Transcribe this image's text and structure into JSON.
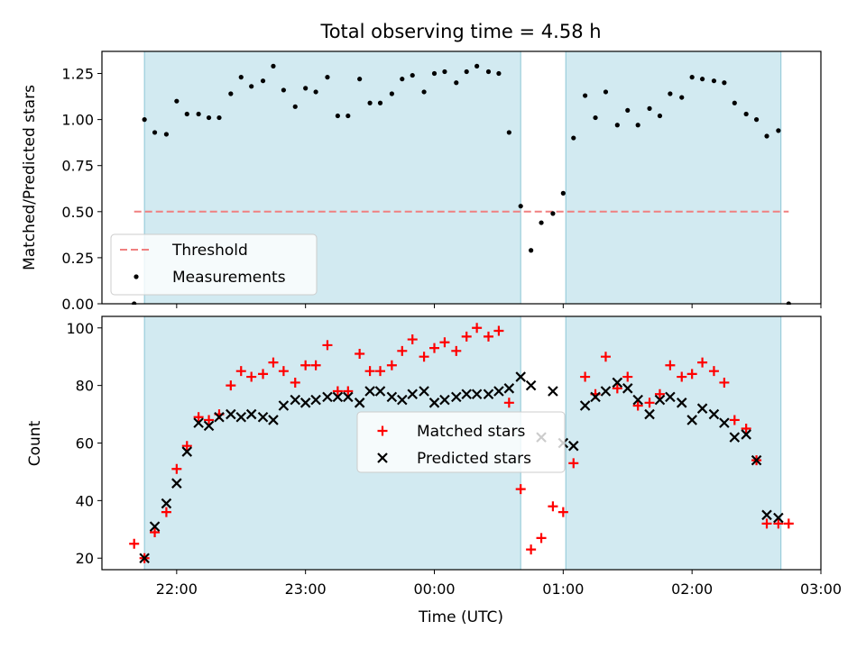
{
  "chart_data": {
    "type": "scatter",
    "title": "Total observing time = 4.58 h",
    "xlabel": "Time (UTC)",
    "x_unit": "UTC hour of night (hours after 24:00 continue past midnight)",
    "xlim": [
      21.42,
      27.0
    ],
    "xticks": [
      {
        "value": 22,
        "label": "22:00"
      },
      {
        "value": 23,
        "label": "23:00"
      },
      {
        "value": 24,
        "label": "00:00"
      },
      {
        "value": 25,
        "label": "01:00"
      },
      {
        "value": 26,
        "label": "02:00"
      },
      {
        "value": 27,
        "label": "03:00"
      }
    ],
    "observing_windows": [
      [
        21.75,
        24.67
      ],
      [
        25.02,
        26.69
      ]
    ],
    "window_color": "#add8e6",
    "panels": [
      {
        "ylabel": "Matched/Predicted stars",
        "ylim": [
          0,
          1.37
        ],
        "yticks": [
          0,
          0.25,
          0.5,
          0.75,
          1.0,
          1.25
        ],
        "ytick_labels": [
          "0.00",
          "0.25",
          "0.50",
          "0.75",
          "1.00",
          "1.25"
        ],
        "threshold": {
          "name": "Threshold",
          "y": 0.5,
          "x_range": [
            21.67,
            26.75
          ],
          "color": "#f08080"
        },
        "legend": {
          "position": "lower left",
          "entries": [
            "Threshold",
            "Measurements"
          ]
        },
        "series": [
          {
            "name": "Measurements",
            "marker": "dot",
            "color": "#000000",
            "x": [
              21.67,
              21.75,
              21.83,
              21.92,
              22.0,
              22.08,
              22.17,
              22.25,
              22.33,
              22.42,
              22.5,
              22.58,
              22.67,
              22.75,
              22.83,
              22.92,
              23.0,
              23.08,
              23.17,
              23.25,
              23.33,
              23.42,
              23.5,
              23.58,
              23.67,
              23.75,
              23.83,
              23.92,
              24.0,
              24.08,
              24.17,
              24.25,
              24.33,
              24.42,
              24.5,
              24.58,
              24.67,
              24.75,
              24.83,
              24.92,
              25.0,
              25.08,
              25.17,
              25.25,
              25.33,
              25.42,
              25.5,
              25.58,
              25.67,
              25.75,
              25.83,
              25.92,
              26.0,
              26.08,
              26.17,
              26.25,
              26.33,
              26.42,
              26.5,
              26.58,
              26.67,
              26.75
            ],
            "y": [
              0.0,
              1.0,
              0.93,
              0.92,
              1.1,
              1.03,
              1.03,
              1.01,
              1.01,
              1.14,
              1.23,
              1.18,
              1.21,
              1.29,
              1.16,
              1.07,
              1.17,
              1.15,
              1.23,
              1.02,
              1.02,
              1.22,
              1.09,
              1.09,
              1.14,
              1.22,
              1.24,
              1.15,
              1.25,
              1.26,
              1.2,
              1.26,
              1.29,
              1.26,
              1.25,
              0.93,
              0.53,
              0.29,
              0.44,
              0.49,
              0.6,
              0.9,
              1.13,
              1.01,
              1.15,
              0.97,
              1.05,
              0.97,
              1.06,
              1.02,
              1.14,
              1.12,
              1.23,
              1.22,
              1.21,
              1.2,
              1.09,
              1.03,
              1.0,
              0.91,
              0.94,
              0.0
            ]
          }
        ]
      },
      {
        "ylabel": "Count",
        "ylim": [
          16,
          104
        ],
        "yticks": [
          20,
          40,
          60,
          80,
          100
        ],
        "ytick_labels": [
          "20",
          "40",
          "60",
          "80",
          "100"
        ],
        "legend": {
          "position": "center",
          "entries": [
            "Matched stars",
            "Predicted stars"
          ]
        },
        "series": [
          {
            "name": "Matched stars",
            "marker": "plus",
            "color": "#ff0000",
            "x": [
              21.67,
              21.75,
              21.83,
              21.92,
              22.0,
              22.08,
              22.17,
              22.25,
              22.33,
              22.42,
              22.5,
              22.58,
              22.67,
              22.75,
              22.83,
              22.92,
              23.0,
              23.08,
              23.17,
              23.25,
              23.33,
              23.42,
              23.5,
              23.58,
              23.67,
              23.75,
              23.83,
              23.92,
              24.0,
              24.08,
              24.17,
              24.25,
              24.33,
              24.42,
              24.5,
              24.58,
              24.67,
              24.75,
              24.83,
              24.92,
              25.0,
              25.08,
              25.17,
              25.25,
              25.33,
              25.42,
              25.5,
              25.58,
              25.67,
              25.75,
              25.83,
              25.92,
              26.0,
              26.08,
              26.17,
              26.25,
              26.33,
              26.42,
              26.5,
              26.58,
              26.67,
              26.75
            ],
            "y": [
              25,
              20,
              29,
              36,
              51,
              59,
              69,
              68,
              70,
              80,
              85,
              83,
              84,
              88,
              85,
              81,
              87,
              87,
              94,
              78,
              78,
              91,
              85,
              85,
              87,
              92,
              96,
              90,
              93,
              95,
              92,
              97,
              100,
              97,
              99,
              74,
              44,
              23,
              27,
              38,
              36,
              53,
              83,
              77,
              90,
              79,
              83,
              73,
              74,
              77,
              87,
              83,
              84,
              88,
              85,
              81,
              68,
              65,
              54,
              32,
              32,
              32
            ]
          },
          {
            "name": "Predicted stars",
            "marker": "x",
            "color": "#000000",
            "x": [
              21.75,
              21.83,
              21.92,
              22.0,
              22.08,
              22.17,
              22.25,
              22.33,
              22.42,
              22.5,
              22.58,
              22.67,
              22.75,
              22.83,
              22.92,
              23.0,
              23.08,
              23.17,
              23.25,
              23.33,
              23.42,
              23.5,
              23.58,
              23.67,
              23.75,
              23.83,
              23.92,
              24.0,
              24.08,
              24.17,
              24.25,
              24.33,
              24.42,
              24.5,
              24.58,
              24.67,
              24.75,
              24.83,
              24.92,
              25.0,
              25.08,
              25.17,
              25.25,
              25.33,
              25.42,
              25.5,
              25.58,
              25.67,
              25.75,
              25.83,
              25.92,
              26.0,
              26.08,
              26.17,
              26.25,
              26.33,
              26.42,
              26.5,
              26.58,
              26.67
            ],
            "y": [
              20,
              31,
              39,
              46,
              57,
              67,
              66,
              69,
              70,
              69,
              70,
              69,
              68,
              73,
              75,
              74,
              75,
              76,
              76,
              76,
              74,
              78,
              78,
              76,
              75,
              77,
              78,
              74,
              75,
              76,
              77,
              77,
              77,
              78,
              79,
              83,
              80,
              62,
              78,
              60,
              59,
              73,
              76,
              78,
              81,
              79,
              75,
              70,
              75,
              76,
              74,
              68,
              72,
              70,
              67,
              62,
              63,
              54,
              35,
              34
            ]
          }
        ]
      }
    ]
  }
}
